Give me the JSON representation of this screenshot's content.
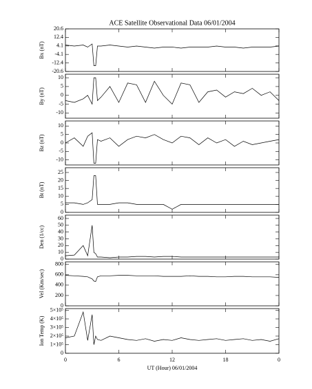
{
  "chart_data": [
    {
      "type": "line",
      "title": "ACE Satellite Observational Data   06/01/2004",
      "ylabel": "Bx (nT)",
      "x": [
        0,
        1,
        2,
        2.5,
        3,
        3.2,
        3.4,
        3.6,
        4,
        5,
        6,
        7,
        8,
        9,
        10,
        11,
        12,
        13,
        14,
        15,
        16,
        17,
        18,
        19,
        20,
        21,
        22,
        23,
        24
      ],
      "values": [
        5,
        4,
        5,
        3,
        6,
        -15,
        -15,
        4,
        4,
        5,
        4,
        3,
        4,
        3,
        2,
        3,
        3,
        2,
        3,
        3,
        3,
        4,
        3,
        3,
        2,
        3,
        3,
        3,
        4
      ],
      "xlim": [
        0,
        24
      ],
      "ylim": [
        -20.6,
        20.6
      ],
      "yticks": [
        -20.6,
        -12.4,
        -4.1,
        4.1,
        12.4,
        20.6
      ]
    },
    {
      "type": "line",
      "ylabel": "By (nT)",
      "x": [
        0,
        1,
        2,
        2.5,
        3,
        3.2,
        3.4,
        3.6,
        4,
        5,
        6,
        7,
        8,
        9,
        10,
        11,
        12,
        13,
        14,
        15,
        16,
        17,
        18,
        19,
        20,
        21,
        22,
        23,
        24
      ],
      "values": [
        -3,
        -4,
        -2,
        0,
        -5,
        10,
        10,
        -3,
        -1,
        5,
        -4,
        7,
        6,
        -4,
        8,
        0,
        -5,
        7,
        6,
        -4,
        2,
        3,
        -1,
        2,
        1,
        4,
        0,
        2,
        -3
      ],
      "xlim": [
        0,
        24
      ],
      "ylim": [
        -13,
        12
      ],
      "yticks": [
        -10,
        -5,
        0,
        5,
        10
      ]
    },
    {
      "type": "line",
      "ylabel": "Bz (nT)",
      "x": [
        0,
        1,
        2,
        2.5,
        3,
        3.2,
        3.4,
        3.6,
        4,
        5,
        6,
        7,
        8,
        9,
        10,
        11,
        12,
        13,
        14,
        15,
        16,
        17,
        18,
        19,
        20,
        21,
        22,
        23,
        24
      ],
      "values": [
        0,
        3,
        -2,
        4,
        6,
        -12,
        -12,
        2,
        1,
        3,
        -2,
        2,
        4,
        3,
        5,
        2,
        0,
        4,
        3,
        -1,
        3,
        0,
        2,
        -2,
        1,
        -1,
        0,
        1,
        2
      ],
      "xlim": [
        0,
        24
      ],
      "ylim": [
        -13,
        13
      ],
      "yticks": [
        -10,
        -5,
        0,
        5,
        10
      ]
    },
    {
      "type": "line",
      "ylabel": "Bt (nT)",
      "x": [
        0,
        1,
        2,
        2.5,
        3,
        3.2,
        3.4,
        3.6,
        4,
        5,
        6,
        7,
        8,
        9,
        10,
        11,
        12,
        13,
        14,
        15,
        16,
        17,
        18,
        19,
        20,
        21,
        22,
        23,
        24
      ],
      "values": [
        6,
        6,
        5,
        6,
        8,
        23,
        23,
        5,
        5,
        5,
        6,
        6,
        5,
        5,
        5,
        5,
        2,
        5,
        5,
        5,
        5,
        5,
        5,
        5,
        5,
        5,
        5,
        5,
        5
      ],
      "xlim": [
        0,
        24
      ],
      "ylim": [
        0,
        28
      ],
      "yticks": [
        0,
        5,
        10,
        15,
        20,
        25
      ]
    },
    {
      "type": "line",
      "ylabel": "Den (1/cc)",
      "x": [
        0,
        1,
        2,
        2.5,
        3,
        3.2,
        3.4,
        3.6,
        4,
        5,
        6,
        7,
        8,
        9,
        10,
        11,
        12,
        13,
        14,
        15,
        16,
        17,
        18,
        19,
        20,
        21,
        22,
        23,
        24
      ],
      "values": [
        5,
        6,
        20,
        5,
        50,
        10,
        8,
        3,
        3,
        2,
        3,
        3,
        4,
        4,
        3,
        4,
        4,
        3,
        3,
        3,
        3,
        3,
        3,
        3,
        3,
        3,
        3,
        3,
        3
      ],
      "xlim": [
        0,
        24
      ],
      "ylim": [
        0,
        65
      ],
      "yticks": [
        0,
        10,
        20,
        30,
        40,
        50,
        60
      ]
    },
    {
      "type": "line",
      "ylabel": "Vel (Km/sec)",
      "x": [
        0,
        1,
        2,
        2.5,
        3,
        3.2,
        3.4,
        3.6,
        4,
        5,
        6,
        7,
        8,
        9,
        10,
        11,
        12,
        13,
        14,
        15,
        16,
        17,
        18,
        19,
        20,
        21,
        22,
        23,
        24
      ],
      "values": [
        590,
        580,
        570,
        560,
        520,
        480,
        470,
        560,
        580,
        580,
        590,
        590,
        580,
        580,
        580,
        570,
        570,
        570,
        580,
        570,
        570,
        560,
        560,
        570,
        570,
        560,
        560,
        560,
        550
      ],
      "xlim": [
        0,
        24
      ],
      "ylim": [
        0,
        850
      ],
      "yticks": [
        0,
        200,
        400,
        600,
        800
      ]
    },
    {
      "type": "line",
      "ylabel": "Ion Temp (K)",
      "xlabel": "UT (Hour)  06/01/2004",
      "x": [
        0,
        1,
        2,
        2.5,
        3,
        3.2,
        3.4,
        3.6,
        4,
        5,
        6,
        7,
        8,
        9,
        10,
        11,
        12,
        13,
        14,
        15,
        16,
        17,
        18,
        19,
        20,
        21,
        22,
        23,
        24
      ],
      "values": [
        180000,
        200000,
        480000,
        150000,
        450000,
        100000,
        200000,
        160000,
        150000,
        200000,
        180000,
        160000,
        150000,
        170000,
        140000,
        160000,
        150000,
        180000,
        160000,
        150000,
        160000,
        170000,
        150000,
        160000,
        170000,
        150000,
        160000,
        140000,
        170000
      ],
      "xlim": [
        0,
        24
      ],
      "ylim": [
        0,
        520000
      ],
      "yticks": [
        0,
        {
          "value": 100000,
          "label": "1×10⁵"
        },
        {
          "value": 200000,
          "label": "2×10⁵"
        },
        {
          "value": 300000,
          "label": "3×10⁵"
        },
        {
          "value": 400000,
          "label": "4×10⁵"
        },
        {
          "value": 500000,
          "label": "5×10⁵"
        }
      ],
      "xticks": [
        0,
        6,
        12,
        18,
        {
          "value": 24,
          "label": "0"
        }
      ]
    }
  ]
}
